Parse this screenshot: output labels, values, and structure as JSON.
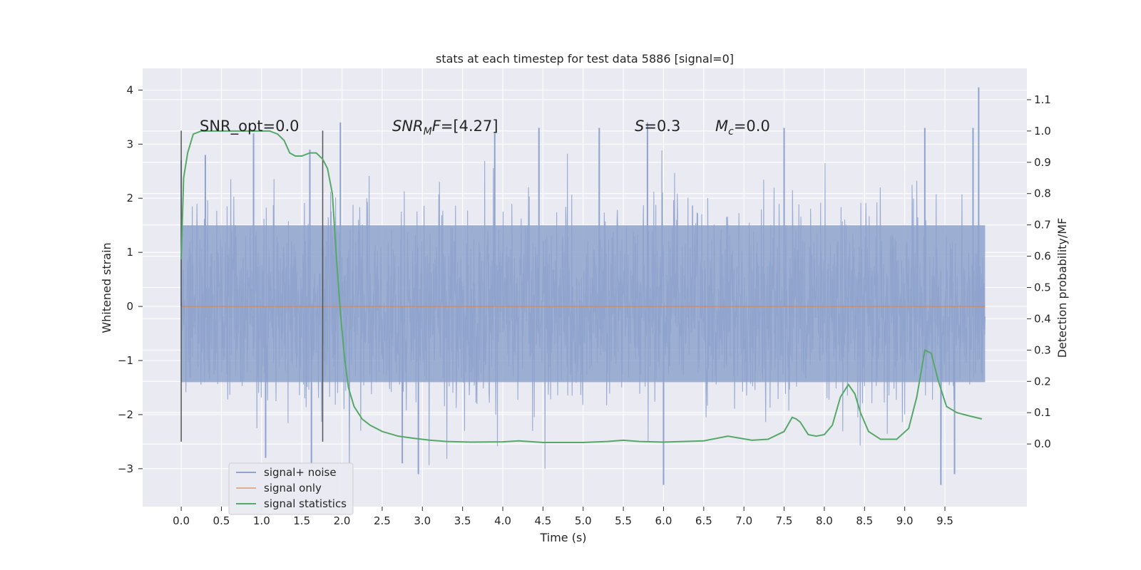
{
  "chart_data": {
    "type": "line",
    "title": "stats at each timestep for test data 5886 [signal=0]",
    "xlabel": "Time (s)",
    "ylabel": "Whitened strain",
    "y2label": "Detection probability/MF",
    "xlim": [
      -0.48,
      10.52
    ],
    "ylim": [
      -3.7,
      4.4
    ],
    "y2lim": [
      -0.2,
      1.2
    ],
    "xticks": [
      "0.0",
      "0.5",
      "1.0",
      "1.5",
      "2.0",
      "2.5",
      "3.0",
      "3.5",
      "4.0",
      "4.5",
      "5.0",
      "5.5",
      "6.0",
      "6.5",
      "7.0",
      "7.5",
      "8.0",
      "8.5",
      "9.0",
      "9.5"
    ],
    "yticks": [
      "4",
      "3",
      "2",
      "1",
      "0",
      "−1",
      "−2",
      "−3"
    ],
    "y2ticks": [
      "1.1",
      "1.0",
      "0.9",
      "0.8",
      "0.7",
      "0.6",
      "0.5",
      "0.4",
      "0.3",
      "0.2",
      "0.1",
      "0.0"
    ],
    "grid": true,
    "legend_position": "lower-left",
    "annotations": {
      "snr_opt": "SNR_opt=0.0",
      "snr_mf_italic": "SNR",
      "snr_mf_sub": "M",
      "snr_mf_italic2": "F",
      "snr_mf_rest": "=[4.27]",
      "s_italic": "S",
      "s_rest": "=0.3",
      "mc_italic": "M",
      "mc_sub": "c",
      "mc_rest": "=0.0"
    },
    "markers": {
      "vertical_lines_x": [
        0.0,
        1.76
      ],
      "vertical_lines_y": [
        -2.5,
        3.25
      ]
    },
    "series": [
      {
        "name": "signal+ noise",
        "color": "#8ea3cd",
        "axis": "left",
        "x_range": [
          0.0,
          10.0
        ],
        "envelope_upper_typical": 1.5,
        "envelope_lower_typical": -1.4,
        "peaks": [
          {
            "x": 0.0,
            "y": 2.7
          },
          {
            "x": 0.3,
            "y": 2.8
          },
          {
            "x": 0.9,
            "y": 3.2
          },
          {
            "x": 1.05,
            "y": -2.8
          },
          {
            "x": 1.6,
            "y": 2.9
          },
          {
            "x": 1.62,
            "y": -3.0
          },
          {
            "x": 1.98,
            "y": 3.4
          },
          {
            "x": 2.75,
            "y": -2.9
          },
          {
            "x": 2.95,
            "y": -3.1
          },
          {
            "x": 3.9,
            "y": 3.2
          },
          {
            "x": 4.45,
            "y": 3.3
          },
          {
            "x": 5.2,
            "y": 3.3
          },
          {
            "x": 5.8,
            "y": 3.4
          },
          {
            "x": 6.0,
            "y": -3.3
          },
          {
            "x": 7.5,
            "y": 3.3
          },
          {
            "x": 9.25,
            "y": 3.3
          },
          {
            "x": 9.45,
            "y": -3.3
          },
          {
            "x": 9.62,
            "y": -3.1
          },
          {
            "x": 9.85,
            "y": 3.3
          },
          {
            "x": 9.92,
            "y": 4.05
          }
        ]
      },
      {
        "name": "signal only",
        "color": "#dd8452",
        "axis": "left",
        "x": [
          0.0,
          10.0
        ],
        "y": [
          0.0,
          0.0
        ]
      },
      {
        "name": "signal statistics",
        "color": "#55a868",
        "axis": "right",
        "x": [
          0.0,
          0.03,
          0.08,
          0.15,
          0.25,
          0.45,
          0.7,
          0.9,
          1.0,
          1.1,
          1.2,
          1.28,
          1.35,
          1.42,
          1.5,
          1.6,
          1.68,
          1.76,
          1.82,
          1.88,
          1.93,
          1.98,
          2.03,
          2.08,
          2.15,
          2.25,
          2.35,
          2.5,
          2.7,
          2.9,
          3.1,
          3.3,
          3.6,
          4.0,
          4.2,
          4.5,
          5.0,
          5.3,
          5.5,
          5.7,
          6.0,
          6.5,
          6.8,
          7.1,
          7.3,
          7.5,
          7.6,
          7.65,
          7.7,
          7.8,
          7.9,
          8.0,
          8.1,
          8.2,
          8.3,
          8.38,
          8.45,
          8.55,
          8.7,
          8.9,
          9.05,
          9.15,
          9.25,
          9.33,
          9.42,
          9.52,
          9.65,
          9.8,
          9.96
        ],
        "y": [
          0.59,
          0.85,
          0.93,
          0.99,
          1.0,
          1.0,
          1.0,
          1.0,
          1.0,
          1.0,
          0.99,
          0.97,
          0.93,
          0.92,
          0.92,
          0.93,
          0.93,
          0.91,
          0.88,
          0.8,
          0.6,
          0.42,
          0.28,
          0.18,
          0.12,
          0.08,
          0.06,
          0.04,
          0.025,
          0.018,
          0.012,
          0.008,
          0.006,
          0.007,
          0.01,
          0.005,
          0.005,
          0.008,
          0.012,
          0.008,
          0.006,
          0.01,
          0.025,
          0.012,
          0.015,
          0.04,
          0.085,
          0.08,
          0.07,
          0.03,
          0.025,
          0.03,
          0.06,
          0.15,
          0.19,
          0.16,
          0.1,
          0.04,
          0.015,
          0.015,
          0.05,
          0.15,
          0.3,
          0.29,
          0.2,
          0.12,
          0.1,
          0.09,
          0.08
        ]
      }
    ]
  }
}
